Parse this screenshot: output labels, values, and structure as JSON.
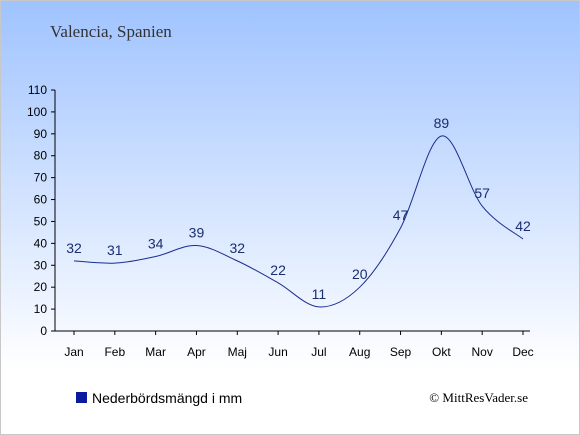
{
  "chart_data": {
    "type": "line",
    "title": "Valencia, Spanien",
    "categories": [
      "Jan",
      "Feb",
      "Mar",
      "Apr",
      "Maj",
      "Jun",
      "Jul",
      "Aug",
      "Sep",
      "Okt",
      "Nov",
      "Dec"
    ],
    "series": [
      {
        "name": "Nederbördsmängd i mm",
        "values": [
          32,
          31,
          34,
          39,
          32,
          22,
          11,
          20,
          47,
          89,
          57,
          42
        ]
      }
    ],
    "ylim": [
      0,
      110
    ],
    "yticks": [
      0,
      10,
      20,
      30,
      40,
      50,
      60,
      70,
      80,
      90,
      100,
      110
    ],
    "xlabel": "",
    "ylabel": "",
    "grid": false,
    "legend_position": "bottom-left",
    "data_labels": true
  },
  "legend": {
    "label": "Nederbördsmängd i mm"
  },
  "copyright": "© MittResVader.se",
  "colors": {
    "line": "#1a2d8f",
    "legend_marker": "#0a1a9c",
    "bg_top": "#9fc3ff",
    "bg_bottom": "#ffffff",
    "data_label": "#1a2d6e"
  }
}
